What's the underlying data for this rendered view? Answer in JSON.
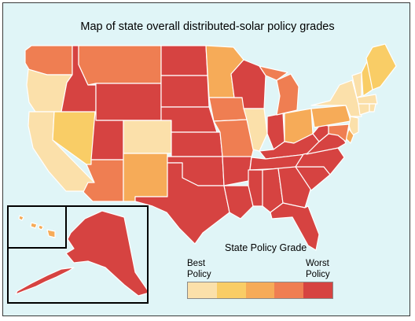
{
  "title": "Map of state overall distributed-solar policy grades",
  "legend": {
    "title": "State Policy Grade",
    "best_label": "Best\nPolicy",
    "worst_label": "Worst\nPolicy",
    "scale_colors": [
      "#fbe0aa",
      "#f9cd66",
      "#f6ab58",
      "#ef7e52",
      "#d64341"
    ]
  },
  "colors": {
    "background": "#e0f5f7",
    "state_border": "#ffffff",
    "inset_border": "#000000"
  },
  "states": [
    {
      "name": "Washington",
      "grade": 4
    },
    {
      "name": "Oregon",
      "grade": 1
    },
    {
      "name": "California",
      "grade": 1
    },
    {
      "name": "Nevada",
      "grade": 2
    },
    {
      "name": "Idaho",
      "grade": 5
    },
    {
      "name": "Montana",
      "grade": 4
    },
    {
      "name": "Wyoming",
      "grade": 5
    },
    {
      "name": "Utah",
      "grade": 5
    },
    {
      "name": "Arizona",
      "grade": 4
    },
    {
      "name": "Colorado",
      "grade": 1
    },
    {
      "name": "New Mexico",
      "grade": 3
    },
    {
      "name": "North Dakota",
      "grade": 5
    },
    {
      "name": "South Dakota",
      "grade": 5
    },
    {
      "name": "Nebraska",
      "grade": 5
    },
    {
      "name": "Kansas",
      "grade": 5
    },
    {
      "name": "Oklahoma",
      "grade": 5
    },
    {
      "name": "Texas",
      "grade": 5
    },
    {
      "name": "Minnesota",
      "grade": 3
    },
    {
      "name": "Iowa",
      "grade": 4
    },
    {
      "name": "Missouri",
      "grade": 4
    },
    {
      "name": "Arkansas",
      "grade": 5
    },
    {
      "name": "Louisiana",
      "grade": 5
    },
    {
      "name": "Wisconsin",
      "grade": 5
    },
    {
      "name": "Illinois",
      "grade": 1
    },
    {
      "name": "Indiana",
      "grade": 5
    },
    {
      "name": "Michigan",
      "grade": 4
    },
    {
      "name": "Ohio",
      "grade": 3
    },
    {
      "name": "Kentucky",
      "grade": 5
    },
    {
      "name": "Tennessee",
      "grade": 5
    },
    {
      "name": "Mississippi",
      "grade": 5
    },
    {
      "name": "Alabama",
      "grade": 5
    },
    {
      "name": "Georgia",
      "grade": 5
    },
    {
      "name": "Florida",
      "grade": 5
    },
    {
      "name": "South Carolina",
      "grade": 5
    },
    {
      "name": "North Carolina",
      "grade": 5
    },
    {
      "name": "Virginia",
      "grade": 5
    },
    {
      "name": "West Virginia",
      "grade": 5
    },
    {
      "name": "Pennsylvania",
      "grade": 3
    },
    {
      "name": "New York",
      "grade": 1
    },
    {
      "name": "Vermont",
      "grade": 1
    },
    {
      "name": "New Hampshire",
      "grade": 2
    },
    {
      "name": "Maine",
      "grade": 2
    },
    {
      "name": "Massachusetts",
      "grade": 1
    },
    {
      "name": "Connecticut",
      "grade": 1
    },
    {
      "name": "Rhode Island",
      "grade": 1
    },
    {
      "name": "New Jersey",
      "grade": 1
    },
    {
      "name": "Delaware",
      "grade": 3
    },
    {
      "name": "Maryland",
      "grade": 4
    },
    {
      "name": "Alaska",
      "grade": 5
    },
    {
      "name": "Hawaii",
      "grade": 3
    }
  ]
}
